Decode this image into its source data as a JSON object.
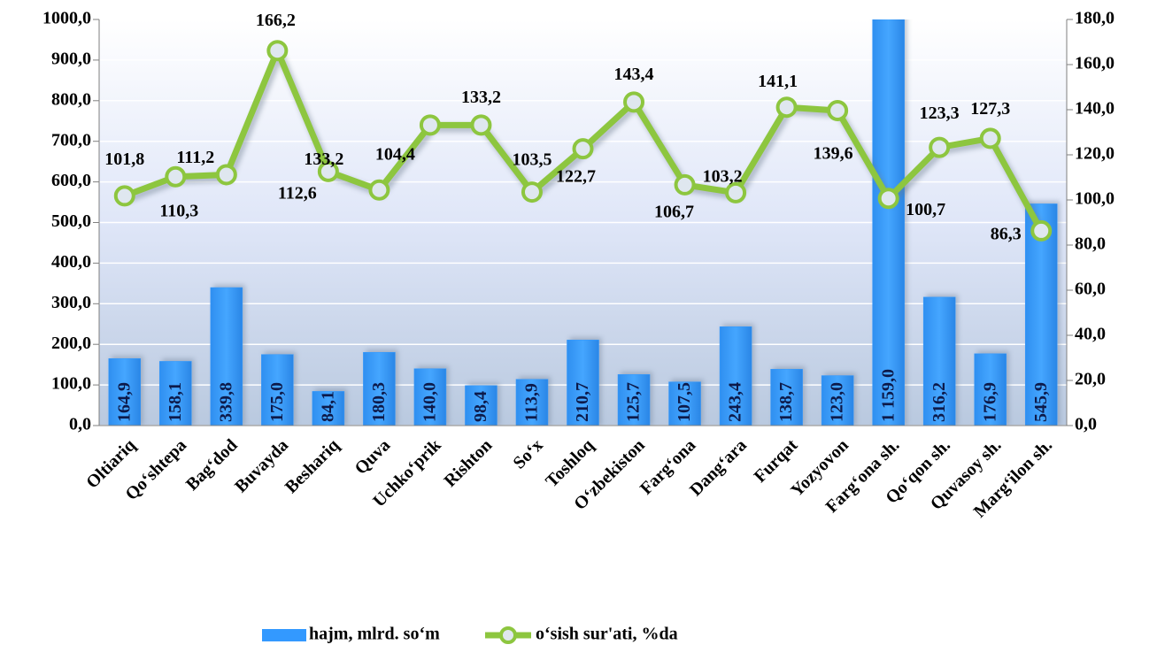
{
  "chart_data": {
    "type": "bar-line",
    "categories": [
      "Oltiariq",
      "Qo‘shtepa",
      "Bag‘dod",
      "Buvayda",
      "Beshariq",
      "Quva",
      "Uchko‘prik",
      "Rishton",
      "So‘x",
      "Toshloq",
      "O‘zbekiston",
      "Farg‘ona",
      "Dang‘ara",
      "Furqat",
      "Yozyovon",
      "Farg‘ona sh.",
      "Qo‘qon sh.",
      "Quvasoy sh.",
      "Marg‘ilon sh."
    ],
    "series": [
      {
        "name": "hajm, mlrd. so‘m",
        "type": "bar",
        "color": "#3399ff",
        "axis": "y",
        "values": [
          164.9,
          158.1,
          339.8,
          175.0,
          84.1,
          180.3,
          140.0,
          98.4,
          113.9,
          210.7,
          125.7,
          107.5,
          243.4,
          138.7,
          123.0,
          1159.0,
          316.2,
          176.9,
          545.9
        ],
        "value_labels": [
          "164,9",
          "158,1",
          "339,8",
          "175,0",
          "84,1",
          "180,3",
          "140,0",
          "98,4",
          "113,9",
          "210,7",
          "125,7",
          "107,5",
          "243,4",
          "138,7",
          "123,0",
          "1 159,0",
          "316,2",
          "176,9",
          "545,9"
        ]
      },
      {
        "name": "o‘sish sur'ati, %da",
        "type": "line",
        "color": "#8dc63f",
        "axis": "y2",
        "values": [
          101.8,
          110.3,
          111.2,
          166.2,
          112.6,
          104.4,
          133.2,
          133.2,
          103.5,
          122.7,
          143.4,
          106.7,
          103.2,
          141.1,
          139.6,
          100.7,
          123.3,
          127.3,
          86.3
        ],
        "value_labels": [
          "101,8",
          "110,3",
          "111,2",
          "166,2",
          "112,6",
          "104,4",
          "133,2",
          "133,2",
          "103,5",
          "122,7",
          "143,4",
          "106,7",
          "103,2",
          "141,1",
          "139,6",
          "100,7",
          "123,3",
          "127,3",
          "86,3"
        ]
      }
    ],
    "ylim": [
      0,
      1000
    ],
    "yticks": [
      {
        "value": 0,
        "label": "0,0"
      },
      {
        "value": 100,
        "label": "100,0"
      },
      {
        "value": 200,
        "label": "200,0"
      },
      {
        "value": 300,
        "label": "300,0"
      },
      {
        "value": 400,
        "label": "400,0"
      },
      {
        "value": 500,
        "label": "500,0"
      },
      {
        "value": 600,
        "label": "600,0"
      },
      {
        "value": 700,
        "label": "700,0"
      },
      {
        "value": 800,
        "label": "800,0"
      },
      {
        "value": 900,
        "label": "900,0"
      },
      {
        "value": 1000,
        "label": "1000,0"
      }
    ],
    "y2lim": [
      0,
      180
    ],
    "y2ticks": [
      {
        "value": 0,
        "label": "0,0"
      },
      {
        "value": 20,
        "label": "20,0"
      },
      {
        "value": 40,
        "label": "40,0"
      },
      {
        "value": 60,
        "label": "60,0"
      },
      {
        "value": 80,
        "label": "80,0"
      },
      {
        "value": 100,
        "label": "100,0"
      },
      {
        "value": 120,
        "label": "120,0"
      },
      {
        "value": 140,
        "label": "140,0"
      },
      {
        "value": 160,
        "label": "160,0"
      },
      {
        "value": 180,
        "label": "180,0"
      }
    ],
    "grid": true,
    "legend": "bottom"
  }
}
